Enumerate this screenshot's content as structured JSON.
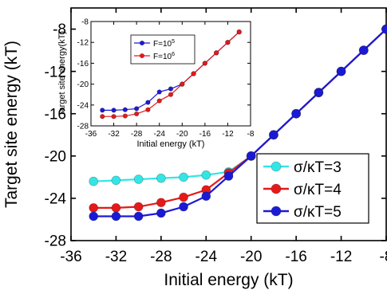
{
  "chart_data": [
    {
      "type": "line",
      "xlabel": "Initial energy (kT)",
      "ylabel": "Target site  energy (kT)",
      "xlim": [
        -36,
        -8
      ],
      "ylim": [
        -28,
        -6
      ],
      "xticks": [
        -36,
        -32,
        -28,
        -24,
        -20,
        -16,
        -12,
        -8
      ],
      "yticks": [
        -28,
        -24,
        -20,
        -16,
        -12,
        -8
      ],
      "grid": false,
      "legend_position": "bottom-right",
      "series": [
        {
          "name": "σ/κT=3",
          "color": "#33e6e6",
          "x": [
            -34,
            -32,
            -30,
            -28,
            -26,
            -24,
            -22,
            -20,
            -18,
            -16,
            -14,
            -12,
            -10,
            -8
          ],
          "y": [
            -22.4,
            -22.3,
            -22.2,
            -22.1,
            -22.0,
            -21.8,
            -21.5,
            -20.0,
            -18.0,
            -16.0,
            -14.0,
            -12.0,
            -10.0,
            -8.0
          ]
        },
        {
          "name": "σ/κT=4",
          "color": "#e61919",
          "x": [
            -34,
            -32,
            -30,
            -28,
            -26,
            -24,
            -22,
            -20,
            -18,
            -16,
            -14,
            -12,
            -10,
            -8
          ],
          "y": [
            -24.9,
            -24.9,
            -24.8,
            -24.4,
            -23.9,
            -23.2,
            -21.6,
            -20.0,
            -18.0,
            -16.0,
            -14.0,
            -12.0,
            -10.0,
            -8.0
          ]
        },
        {
          "name": "σ/κT=5",
          "color": "#1a1ad6",
          "x": [
            -34,
            -32,
            -30,
            -28,
            -26,
            -24,
            -22,
            -20,
            -18,
            -16,
            -14,
            -12,
            -10,
            -8
          ],
          "y": [
            -25.7,
            -25.7,
            -25.7,
            -25.4,
            -24.8,
            -23.8,
            -21.9,
            -20.0,
            -18.0,
            -16.0,
            -14.0,
            -12.0,
            -10.0,
            -8.0
          ]
        }
      ]
    },
    {
      "type": "line",
      "xlabel": "Initial energy (kT)",
      "ylabel": "Target site energy(kT)",
      "xlim": [
        -36,
        -8
      ],
      "ylim": [
        -28,
        -8
      ],
      "xticks": [
        -36,
        -32,
        -28,
        -24,
        -20,
        -16,
        -12,
        -8
      ],
      "yticks": [
        -28,
        -24,
        -20,
        -16,
        -12,
        -8
      ],
      "grid": false,
      "legend_position": "top-left",
      "series": [
        {
          "name_base": "F=10",
          "name_exp": "5",
          "color": "#1a1ad6",
          "x": [
            -34,
            -32,
            -30,
            -28,
            -26,
            -24,
            -22,
            -20,
            -18,
            -16,
            -14,
            -12,
            -10
          ],
          "y": [
            -25.0,
            -25.0,
            -24.9,
            -24.7,
            -23.5,
            -21.5,
            -20.9,
            -20.0,
            -18.0,
            -16.0,
            -14.0,
            -12.0,
            -10.0
          ]
        },
        {
          "name_base": "F=10",
          "name_exp": "6",
          "color": "#e61919",
          "x": [
            -34,
            -32,
            -30,
            -28,
            -26,
            -24,
            -22,
            -20,
            -18,
            -16,
            -14,
            -12,
            -10
          ],
          "y": [
            -26.2,
            -26.2,
            -26.1,
            -25.7,
            -24.9,
            -23.2,
            -22.0,
            -20.0,
            -18.0,
            -16.0,
            -14.0,
            -12.0,
            -10.0
          ]
        }
      ]
    }
  ]
}
